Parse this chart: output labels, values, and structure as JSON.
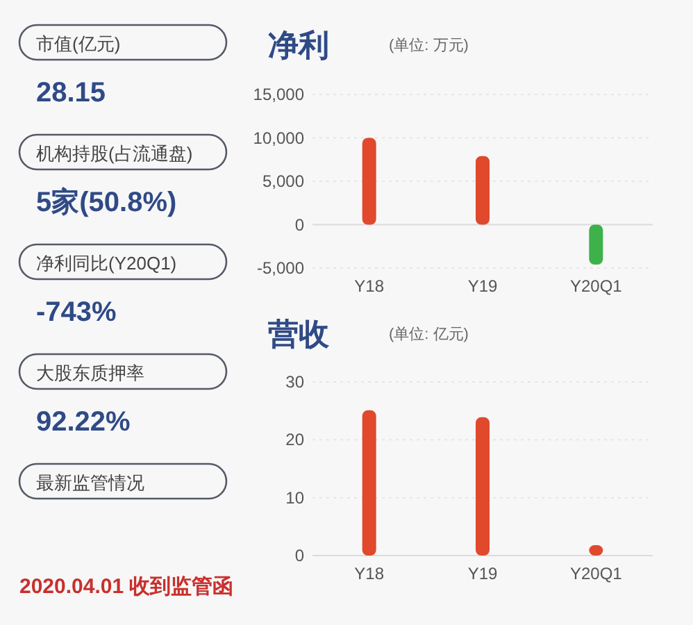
{
  "chart_data": [
    {
      "type": "other",
      "annotations": [
        "市值(亿元)",
        "28.15",
        "机构持股(占流通盘)",
        "5家(50.8%)",
        "净利同比(Y20Q1)",
        "-743%",
        "大股东质押率",
        "92.22%",
        "最新监管情况",
        "2020.04.01 收到监管函"
      ]
    },
    {
      "type": "bar",
      "title": "净利",
      "subtitle": "(单位: 万元)",
      "categories": [
        "Y18",
        "Y19",
        "Y20Q1"
      ],
      "values": [
        10000,
        7900,
        -4600
      ],
      "colors": [
        "#e0492c",
        "#e0492c",
        "#3fb14a"
      ],
      "ylim": [
        -5000,
        15000
      ],
      "yticks": [
        {
          "value": -5000,
          "label": "-5,000"
        },
        0,
        {
          "value": 5000,
          "label": "5,000"
        },
        {
          "value": 10000,
          "label": "10,000"
        },
        {
          "value": 15000,
          "label": "15,000"
        }
      ],
      "grid": "y"
    },
    {
      "type": "bar",
      "title": "营收",
      "subtitle": "(单位: 亿元)",
      "categories": [
        "Y18",
        "Y19",
        "Y20Q1"
      ],
      "values": [
        25.1,
        23.9,
        1.8
      ],
      "colors": [
        "#e0492c",
        "#e0492c",
        "#e0492c"
      ],
      "ylim": [
        0,
        30
      ],
      "yticks": [
        0,
        10,
        20,
        30
      ],
      "grid": "y"
    }
  ]
}
